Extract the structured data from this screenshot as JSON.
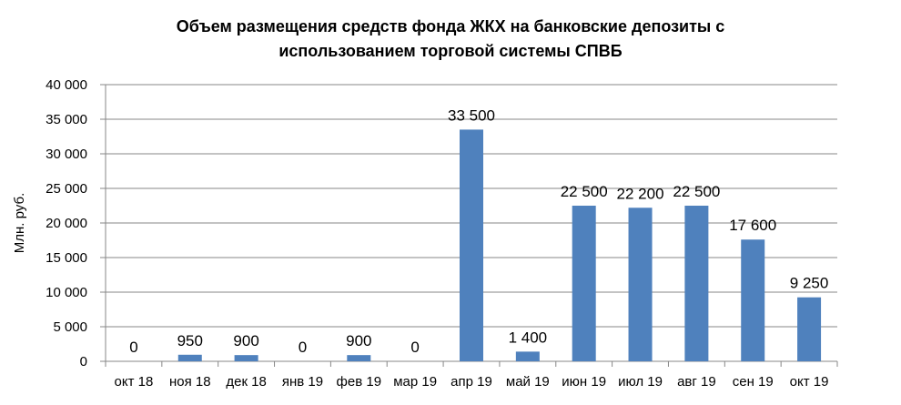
{
  "chart_data": {
    "type": "bar",
    "title_lines": [
      "Объем размещения средств фонда ЖКХ на банковские депозиты с",
      "использованием торговой системы СПВБ"
    ],
    "ylabel": "Млн. руб.",
    "xlabel": "",
    "categories": [
      "окт 18",
      "ноя 18",
      "дек 18",
      "янв 19",
      "фев 19",
      "мар 19",
      "апр 19",
      "май 19",
      "июн 19",
      "июл 19",
      "авг 19",
      "сен 19",
      "окт 19"
    ],
    "values": [
      0,
      950,
      900,
      0,
      900,
      0,
      33500,
      1400,
      22500,
      22200,
      22500,
      17600,
      9250
    ],
    "data_labels": [
      "0",
      "950",
      "900",
      "0",
      "900",
      "0",
      "33 500",
      "1 400",
      "22 500",
      "22 200",
      "22 500",
      "17 600",
      "9 250"
    ],
    "ylim": [
      0,
      40000
    ],
    "yticks": [
      0,
      5000,
      10000,
      15000,
      20000,
      25000,
      30000,
      35000,
      40000
    ],
    "ytick_labels": [
      "0",
      "5 000",
      "10 000",
      "15 000",
      "20 000",
      "25 000",
      "30 000",
      "35 000",
      "40 000"
    ],
    "bar_color": "#4F81BD",
    "grid": true,
    "legend": "none"
  }
}
